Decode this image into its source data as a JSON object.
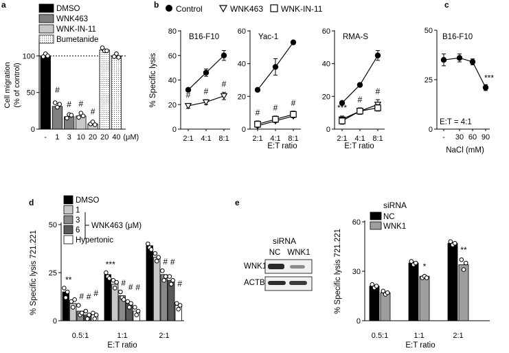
{
  "chart_data": [
    {
      "panel": "a",
      "type": "bar",
      "ylabel": "Cell migration\n(% of control)",
      "ylim": [
        0,
        120
      ],
      "yticks": [
        0,
        50,
        100
      ],
      "xlabel_unit": "(μM)",
      "legend": [
        "DMSO",
        "WNK463",
        "WNK-IN-11",
        "Bumetanide"
      ],
      "categories": [
        "-",
        "1",
        "3",
        "10",
        "20",
        "20",
        "40"
      ],
      "groups": [
        "DMSO",
        "WNK463",
        "WNK463",
        "WNK-IN-11",
        "WNK-IN-11",
        "Bumetanide",
        "Bumetanide"
      ],
      "values": [
        100,
        31,
        17,
        18,
        7,
        108,
        100
      ],
      "points": [
        [
          99,
          101,
          100
        ],
        [
          36,
          28,
          34
        ],
        [
          15,
          18,
          19
        ],
        [
          16,
          20,
          18
        ],
        [
          7,
          8,
          6
        ],
        [
          111,
          105,
          107
        ],
        [
          99,
          101,
          98
        ]
      ],
      "significance": [
        "",
        "#",
        "#",
        "#",
        "#",
        "",
        ""
      ],
      "reference_line": 100
    },
    {
      "panel": "b",
      "type": "line",
      "legend": [
        "Control",
        "WNK463",
        "WNK-IN-11"
      ],
      "ylabel": "% Specific lysis",
      "xlabel": "E:T ratio",
      "x": [
        "2:1",
        "4:1",
        "8:1"
      ],
      "subplots": [
        {
          "title": "B16-F10",
          "ylim": [
            0,
            80
          ],
          "yticks": [
            0,
            20,
            40,
            60,
            80
          ],
          "series": [
            {
              "name": "Control",
              "values": [
                32,
                46,
                60
              ],
              "err": [
                1,
                3,
                4
              ]
            },
            {
              "name": "WNK463",
              "values": [
                19,
                22,
                27
              ],
              "err": [
                2,
                2,
                3
              ]
            }
          ],
          "significance": [
            "#",
            "#",
            "#"
          ]
        },
        {
          "title": "Yac-1",
          "ylim": [
            0,
            60
          ],
          "yticks": [
            0,
            20,
            40,
            60
          ],
          "series": [
            {
              "name": "Control",
              "values": [
                24,
                38,
                53
              ],
              "err": [
                1,
                5,
                1
              ]
            },
            {
              "name": "WNK463",
              "values": [
                2,
                5,
                8
              ],
              "err": [
                1,
                1,
                1
              ]
            },
            {
              "name": "WNK-IN-11",
              "values": [
                3,
                6,
                9
              ],
              "err": [
                2,
                2,
                2
              ]
            }
          ],
          "significance": [
            "#",
            "#",
            "#"
          ]
        },
        {
          "title": "RMA-S",
          "ylim": [
            0,
            60
          ],
          "yticks": [
            0,
            20,
            40,
            60
          ],
          "series": [
            {
              "name": "Control",
              "values": [
                16,
                27,
                45
              ],
              "err": [
                1,
                1,
                3
              ]
            },
            {
              "name": "WNK463",
              "values": [
                6,
                11,
                15
              ],
              "err": [
                2,
                2,
                3
              ]
            },
            {
              "name": "WNK-IN-11",
              "values": [
                5,
                11,
                13
              ],
              "err": [
                2,
                1,
                2
              ]
            }
          ],
          "significance": [
            "***",
            "#",
            "#"
          ]
        }
      ]
    },
    {
      "panel": "c",
      "type": "line",
      "title": "B16-F10",
      "annotation": "E:T = 4:1",
      "xlabel": "NaCl (mM)",
      "x": [
        "-",
        "30",
        "60",
        "90"
      ],
      "ylim": [
        0,
        50
      ],
      "yticks": [
        0,
        25,
        50
      ],
      "values": [
        35,
        36,
        34,
        21
      ],
      "err": [
        3,
        2,
        1.5,
        1.5
      ],
      "significance": [
        "",
        "",
        "",
        "***"
      ]
    },
    {
      "panel": "d",
      "type": "bar",
      "ylabel": "% Specific lysis 721.221",
      "xlabel": "E:T ratio",
      "ylim": [
        0,
        50
      ],
      "yticks": [
        0,
        25,
        50
      ],
      "legend": [
        "DMSO",
        "1",
        "3",
        "6",
        "Hypertonic"
      ],
      "legend_group_label": "WNK463 (μM)",
      "categories": [
        "0.5:1",
        "1:1",
        "2:1"
      ],
      "series": [
        {
          "name": "DMSO",
          "values": [
            15,
            24,
            39
          ],
          "points": [
            [
              17,
              12,
              15
            ],
            [
              25,
              23,
              22
            ],
            [
              40,
              38,
              37
            ]
          ]
        },
        {
          "name": "1",
          "values": [
            9,
            19,
            33
          ],
          "points": [
            [
              10,
              7,
              11
            ],
            [
              21,
              17,
              20
            ],
            [
              35,
              31,
              33
            ]
          ]
        },
        {
          "name": "3",
          "values": [
            5,
            13,
            24
          ],
          "points": [
            [
              8,
              3,
              4
            ],
            [
              15,
              12,
              11
            ],
            [
              26,
              21,
              23
            ]
          ]
        },
        {
          "name": "6",
          "values": [
            3,
            9,
            21
          ],
          "points": [
            [
              5,
              1,
              3
            ],
            [
              10,
              7,
              9
            ],
            [
              23,
              19,
              21
            ]
          ]
        },
        {
          "name": "Hypertonic",
          "values": [
            3,
            5,
            8
          ],
          "points": [
            [
              4,
              1,
              3
            ],
            [
              7,
              3,
              5
            ],
            [
              9,
              6,
              8
            ]
          ]
        }
      ],
      "significance": [
        [
          "**",
          "",
          "#",
          "#",
          "#"
        ],
        [
          "***",
          "",
          "#",
          "#",
          "#"
        ],
        [
          "",
          "",
          "#",
          "#",
          "#"
        ]
      ]
    },
    {
      "panel": "e-blot",
      "type": "other",
      "title": "siRNA",
      "lanes": [
        "NC",
        "WNK1"
      ],
      "rows": [
        "WNK1",
        "ACTB"
      ]
    },
    {
      "panel": "e",
      "type": "bar",
      "title": "siRNA",
      "legend": [
        "NC",
        "WNK1"
      ],
      "ylabel": "% Specific lysis 721.221",
      "xlabel": "E:T ratio",
      "ylim": [
        0,
        60
      ],
      "yticks": [
        0,
        30,
        60
      ],
      "categories": [
        "0.5:1",
        "1:1",
        "2:1"
      ],
      "series": [
        {
          "name": "NC",
          "values": [
            21,
            35,
            47
          ],
          "points": [
            [
              22,
              20,
              21
            ],
            [
              36,
              34,
              35
            ],
            [
              48,
              46,
              47
            ]
          ]
        },
        {
          "name": "WNK1",
          "values": [
            17,
            27,
            34
          ],
          "points": [
            [
              18,
              16,
              17
            ],
            [
              26,
              27,
              26
            ],
            [
              37,
              31,
              35
            ]
          ]
        }
      ],
      "significance": [
        "",
        "*",
        "**"
      ]
    }
  ]
}
